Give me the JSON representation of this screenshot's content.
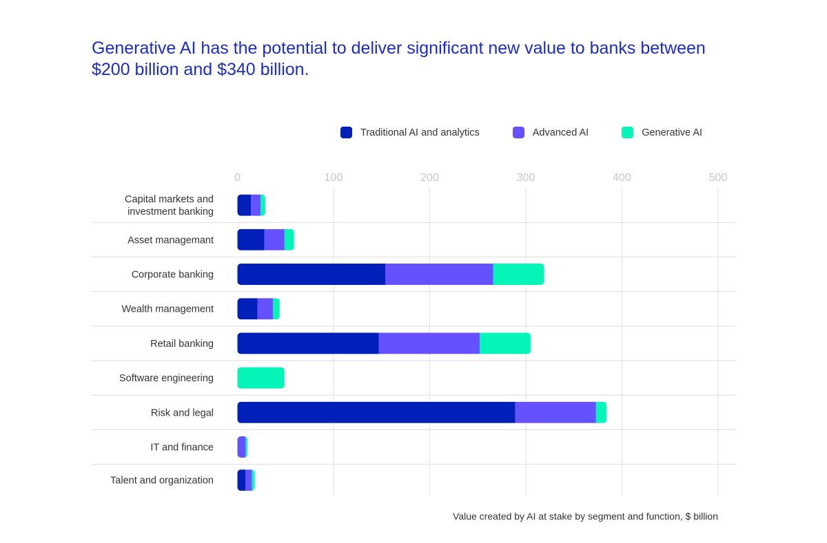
{
  "chart_data": {
    "type": "bar",
    "orientation": "horizontal",
    "stacked": true,
    "title": "Generative AI has the potential to deliver significant new value to banks between $200 billion and $340 billion.",
    "xlabel": "Value created by AI at stake by segment and function, $ billion",
    "ylabel": "",
    "xlim": [
      0,
      500
    ],
    "xticks": [
      "0",
      "100",
      "200",
      "300",
      "400",
      "500"
    ],
    "grid": true,
    "legend_placement": "top-right",
    "categories": [
      [
        "Capital markets and",
        "investment banking"
      ],
      [
        "Asset managemant"
      ],
      [
        "Corporate banking"
      ],
      [
        "Wealth management"
      ],
      [
        "Retail banking"
      ],
      [
        "Software engineering"
      ],
      [
        "Risk and legal"
      ],
      [
        "IT and finance"
      ],
      [
        "Talent and organization"
      ]
    ],
    "series": [
      {
        "name": "Traditional AI and analytics",
        "color": "#0020b9",
        "values": [
          14,
          28,
          154,
          21,
          147,
          0,
          289,
          0,
          8.5
        ]
      },
      {
        "name": "Advanced AI",
        "color": "#6651ff",
        "values": [
          10,
          21,
          112,
          16,
          105,
          0,
          84,
          8.5,
          6.5
        ]
      },
      {
        "name": "Generative AI",
        "color": "#05f5b9",
        "values": [
          5,
          10,
          53,
          7,
          53,
          49,
          11,
          2,
          3
        ]
      }
    ]
  }
}
